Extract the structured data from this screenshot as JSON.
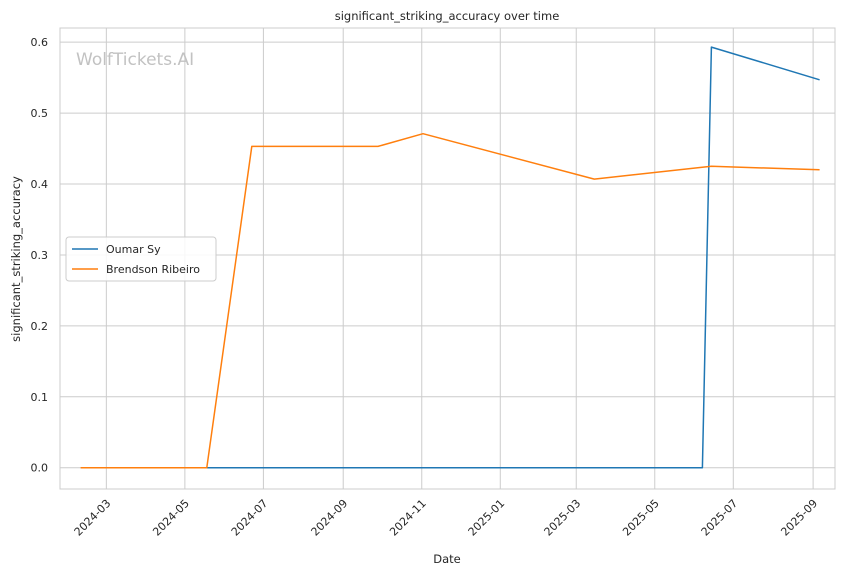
{
  "chart_data": {
    "type": "line",
    "title": "significant_striking_accuracy over time",
    "xlabel": "Date",
    "ylabel": "significant_striking_accuracy",
    "x_axis": "date",
    "xlim": [
      "2024-01-25",
      "2025-09-18"
    ],
    "ylim": [
      -0.03,
      0.62
    ],
    "x_ticks": [
      "2024-03",
      "2024-05",
      "2024-07",
      "2024-09",
      "2024-11",
      "2025-01",
      "2025-03",
      "2025-05",
      "2025-07",
      "2025-09"
    ],
    "y_ticks": [
      "0.0",
      "0.1",
      "0.2",
      "0.3",
      "0.4",
      "0.5",
      "0.6"
    ],
    "grid": true,
    "legend_position": "center-left",
    "watermark": "WolfTickets.AI",
    "series": [
      {
        "name": "Oumar Sy",
        "color": "#1f77b4",
        "points": [
          {
            "x": "2024-05-18",
            "y": 0.0
          },
          {
            "x": "2025-06-07",
            "y": 0.0
          },
          {
            "x": "2025-06-14",
            "y": 0.593
          },
          {
            "x": "2025-09-06",
            "y": 0.547
          }
        ]
      },
      {
        "name": "Brendson Ribeiro",
        "color": "#ff7f0e",
        "points": [
          {
            "x": "2024-02-10",
            "y": 0.0
          },
          {
            "x": "2024-05-18",
            "y": 0.0
          },
          {
            "x": "2024-06-22",
            "y": 0.453
          },
          {
            "x": "2024-09-28",
            "y": 0.453
          },
          {
            "x": "2024-11-02",
            "y": 0.471
          },
          {
            "x": "2025-03-15",
            "y": 0.407
          },
          {
            "x": "2025-06-14",
            "y": 0.425
          },
          {
            "x": "2025-09-06",
            "y": 0.42
          }
        ]
      }
    ]
  }
}
